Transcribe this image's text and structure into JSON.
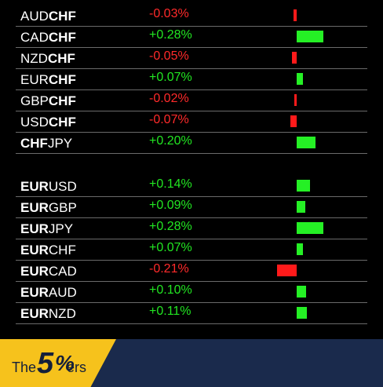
{
  "group_chf": [
    {
      "base": "AUD",
      "quote": "CHF",
      "bold": "quote",
      "change_label": "-0.03%",
      "change": -0.03
    },
    {
      "base": "CAD",
      "quote": "CHF",
      "bold": "quote",
      "change_label": "+0.28%",
      "change": 0.28
    },
    {
      "base": "NZD",
      "quote": "CHF",
      "bold": "quote",
      "change_label": "-0.05%",
      "change": -0.05
    },
    {
      "base": "EUR",
      "quote": "CHF",
      "bold": "quote",
      "change_label": "+0.07%",
      "change": 0.07
    },
    {
      "base": "GBP",
      "quote": "CHF",
      "bold": "quote",
      "change_label": "-0.02%",
      "change": -0.02
    },
    {
      "base": "USD",
      "quote": "CHF",
      "bold": "quote",
      "change_label": "-0.07%",
      "change": -0.07
    },
    {
      "base": "CHF",
      "quote": "JPY",
      "bold": "base",
      "change_label": "+0.20%",
      "change": 0.2
    }
  ],
  "group_eur": [
    {
      "base": "EUR",
      "quote": "USD",
      "bold": "base",
      "change_label": "+0.14%",
      "change": 0.14
    },
    {
      "base": "EUR",
      "quote": "GBP",
      "bold": "base",
      "change_label": "+0.09%",
      "change": 0.09
    },
    {
      "base": "EUR",
      "quote": "JPY",
      "bold": "base",
      "change_label": "+0.28%",
      "change": 0.28
    },
    {
      "base": "EUR",
      "quote": "CHF",
      "bold": "base",
      "change_label": "+0.07%",
      "change": 0.07
    },
    {
      "base": "EUR",
      "quote": "CAD",
      "bold": "base",
      "change_label": "-0.21%",
      "change": -0.21
    },
    {
      "base": "EUR",
      "quote": "AUD",
      "bold": "base",
      "change_label": "+0.10%",
      "change": 0.1
    },
    {
      "base": "EUR",
      "quote": "NZD",
      "bold": "base",
      "change_label": "+0.11%",
      "change": 0.11
    }
  ],
  "colors": {
    "positive": "#25f025",
    "negative": "#ff1a1a",
    "footer_accent": "#f6c21c",
    "footer_bg": "#1a2a4c"
  },
  "footer": {
    "logo_the": "The",
    "logo_five": "5",
    "logo_percent": "%",
    "logo_ers": "ers"
  }
}
